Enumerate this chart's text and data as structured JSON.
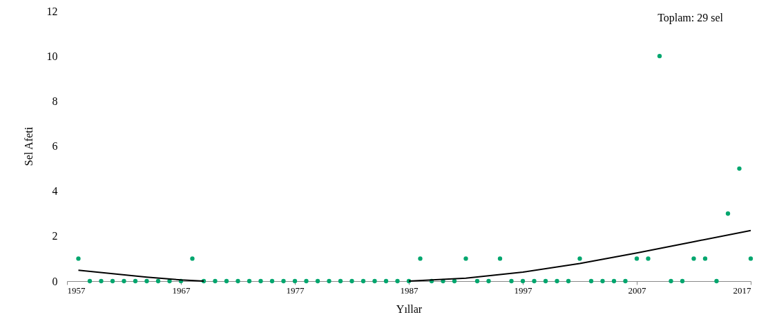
{
  "chart_data": {
    "type": "scatter",
    "xlabel": "Yıllar",
    "ylabel": "Sel Afeti",
    "annotations": [
      "Toplam: 29 sel"
    ],
    "xlim": [
      1957,
      2017
    ],
    "xticks": [
      1957,
      1967,
      1977,
      1987,
      1997,
      2007,
      2017
    ],
    "ylim": [
      0,
      12
    ],
    "yticks": [
      0,
      2,
      4,
      6,
      8,
      10,
      12
    ],
    "grid": false,
    "legend": false,
    "series": [
      {
        "marker": "circle",
        "color": "#00a66e",
        "x": [
          1958,
          1959,
          1960,
          1961,
          1962,
          1963,
          1964,
          1965,
          1966,
          1967,
          1968,
          1969,
          1970,
          1971,
          1972,
          1973,
          1974,
          1975,
          1976,
          1977,
          1978,
          1979,
          1980,
          1981,
          1982,
          1983,
          1984,
          1985,
          1986,
          1987,
          1988,
          1989,
          1990,
          1991,
          1992,
          1993,
          1994,
          1995,
          1996,
          1997,
          1998,
          1999,
          2000,
          2001,
          2002,
          2003,
          2004,
          2005,
          2006,
          2007,
          2008,
          2009,
          2010,
          2011,
          2012,
          2013,
          2014,
          2015,
          2016,
          2017
        ],
        "values": [
          1,
          0,
          0,
          0,
          0,
          0,
          0,
          0,
          0,
          0,
          1,
          0,
          0,
          0,
          0,
          0,
          0,
          0,
          0,
          0,
          0,
          0,
          0,
          0,
          0,
          0,
          0,
          0,
          0,
          0,
          1,
          0,
          0,
          0,
          1,
          0,
          0,
          1,
          0,
          0,
          0,
          0,
          0,
          0,
          1,
          0,
          0,
          0,
          0,
          1,
          1,
          10,
          0,
          0,
          1,
          1,
          0,
          3,
          5,
          1
        ]
      },
      {
        "type": "line",
        "color": "#000000",
        "line_style": "solid",
        "x": [
          1958,
          1961,
          1964,
          1967,
          1969,
          1978,
          1987,
          1992,
          1997,
          2002,
          2007,
          2012,
          2017
        ],
        "values": [
          0.48,
          0.33,
          0.18,
          0.05,
          0.0,
          null,
          0.0,
          0.13,
          0.4,
          0.78,
          1.25,
          1.75,
          2.25
        ]
      }
    ]
  }
}
